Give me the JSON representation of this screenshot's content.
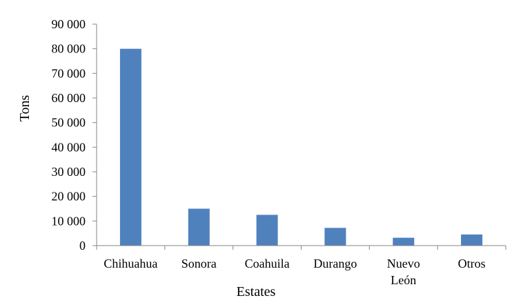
{
  "chart_data": {
    "type": "bar",
    "title": "",
    "xlabel": "Estates",
    "ylabel": "Tons",
    "categories": [
      "Chihuahua",
      "Sonora",
      "Coahuila",
      "Durango",
      "Nuevo León",
      "Otros"
    ],
    "category_lines": [
      [
        "Chihuahua"
      ],
      [
        "Sonora"
      ],
      [
        "Coahuila"
      ],
      [
        "Durango"
      ],
      [
        "Nuevo",
        "León"
      ],
      [
        "Otros"
      ]
    ],
    "values": [
      80000,
      15000,
      12500,
      7200,
      3200,
      4500
    ],
    "ylim": [
      0,
      90000
    ],
    "yticks": [
      0,
      10000,
      20000,
      30000,
      40000,
      50000,
      60000,
      70000,
      80000,
      90000
    ],
    "ytick_labels": [
      "0",
      "10 000",
      "20 000",
      "30 000",
      "40 000",
      "50 000",
      "60 000",
      "70 000",
      "80 000",
      "90 000"
    ],
    "bar_color": "#4f81bd",
    "grid": false,
    "legend": "none"
  }
}
